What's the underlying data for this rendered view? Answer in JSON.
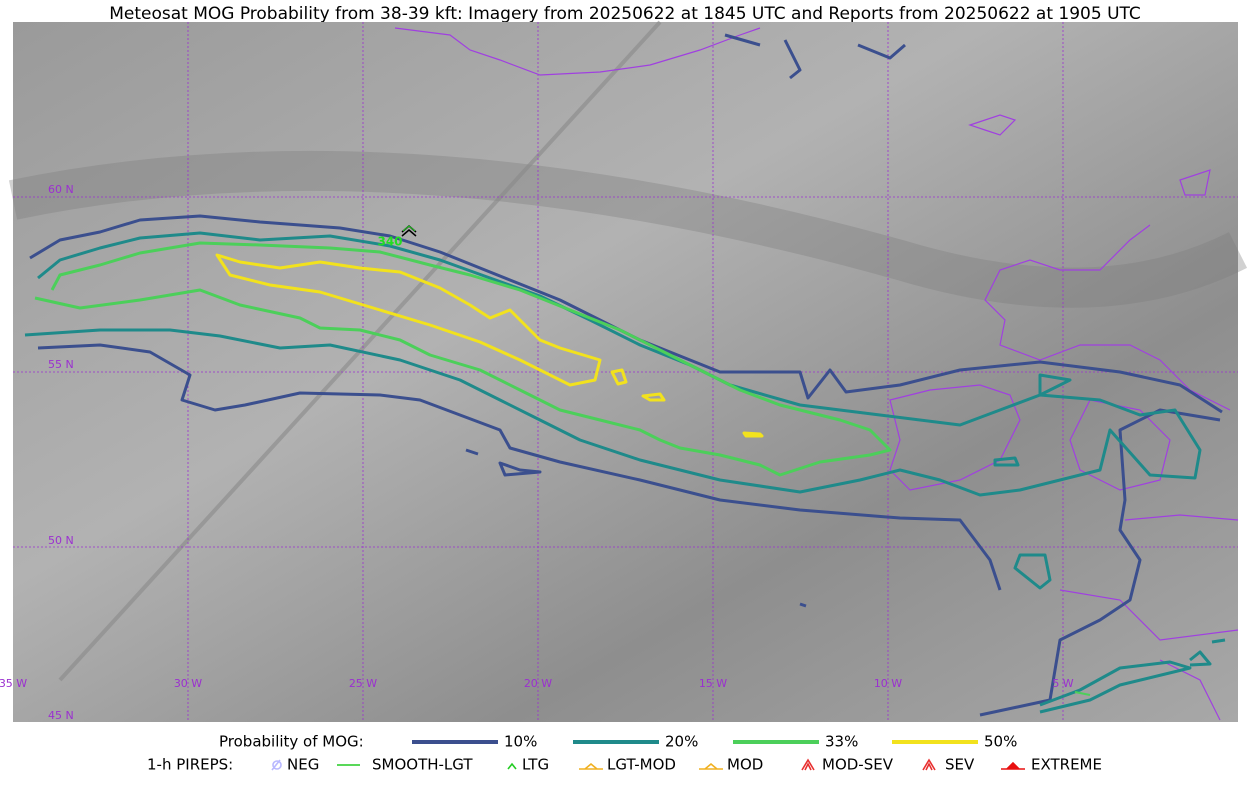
{
  "title": "Meteosat MOG Probability from 38-39 kft: Imagery from 20250622 at 1845 UTC and Reports from 20250622 at 1905 UTC",
  "map": {
    "latitude_labels": [
      "60 N",
      "55 N",
      "50 N",
      "45 N"
    ],
    "longitude_labels": [
      "35 W",
      "30 W",
      "25 W",
      "20 W",
      "15 W",
      "10 W",
      "5 W"
    ],
    "report_label": "340"
  },
  "legend": {
    "title": "Probability of MOG:",
    "items": [
      {
        "label": "10%",
        "color": "#3b4f8e"
      },
      {
        "label": "20%",
        "color": "#1f8a8a"
      },
      {
        "label": "33%",
        "color": "#4ccf5a"
      },
      {
        "label": "50%",
        "color": "#f2e21d"
      }
    ]
  },
  "pireps": {
    "title": "1-h PIREPS:",
    "items": [
      {
        "label": "NEG",
        "color": "#b8b8ff"
      },
      {
        "label": "SMOOTH-LGT",
        "color": "#22cc22"
      },
      {
        "label": "LTG",
        "color": "#22cc22"
      },
      {
        "label": "LGT-MOD",
        "color": "#f0b020"
      },
      {
        "label": "MOD",
        "color": "#f0b020"
      },
      {
        "label": "MOD-SEV",
        "color": "#e83030"
      },
      {
        "label": "SEV",
        "color": "#e83030"
      },
      {
        "label": "EXTREME",
        "color": "#e81010"
      }
    ]
  }
}
